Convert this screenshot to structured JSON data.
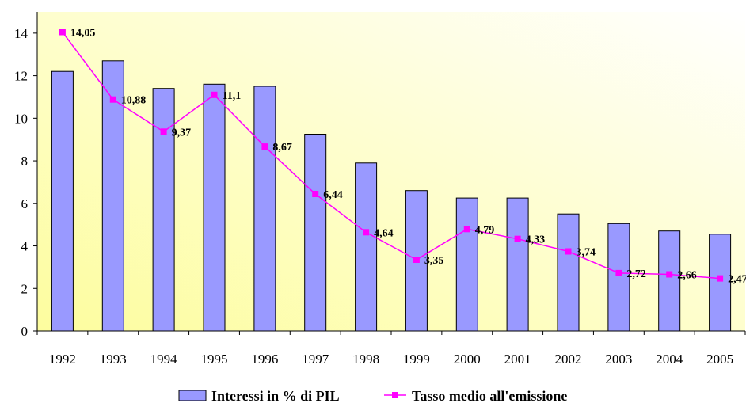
{
  "chart_data": {
    "type": "bar",
    "categories": [
      "1992",
      "1993",
      "1994",
      "1995",
      "1996",
      "1997",
      "1998",
      "1999",
      "2000",
      "2001",
      "2002",
      "2003",
      "2004",
      "2005"
    ],
    "series": [
      {
        "name": "Interessi in % di PIL",
        "type": "bar",
        "color": "#9999ff",
        "values": [
          12.2,
          12.7,
          11.4,
          11.6,
          11.5,
          9.25,
          7.9,
          6.6,
          6.25,
          6.25,
          5.5,
          5.05,
          4.7,
          4.55
        ]
      },
      {
        "name": "Tasso medio all'emissione",
        "type": "line",
        "color": "#ff00ff",
        "values": [
          14.05,
          10.88,
          9.37,
          11.1,
          8.67,
          6.44,
          4.64,
          3.35,
          4.79,
          4.33,
          3.74,
          2.72,
          2.66,
          2.47
        ],
        "labels": [
          "14,05",
          "10,88",
          "9,37",
          "11,1",
          "8,67",
          "6,44",
          "4,64",
          "3,35",
          "4,79",
          "4,33",
          "3,74",
          "2,72",
          "2,66",
          "2,47"
        ]
      }
    ],
    "y_ticks": [
      "0",
      "2",
      "4",
      "6",
      "8",
      "10",
      "12",
      "14"
    ],
    "ylim": [
      0,
      15
    ],
    "grid": false,
    "legend_position": "bottom",
    "background_gradient": [
      "#fdfd9e",
      "#ffffff"
    ]
  }
}
